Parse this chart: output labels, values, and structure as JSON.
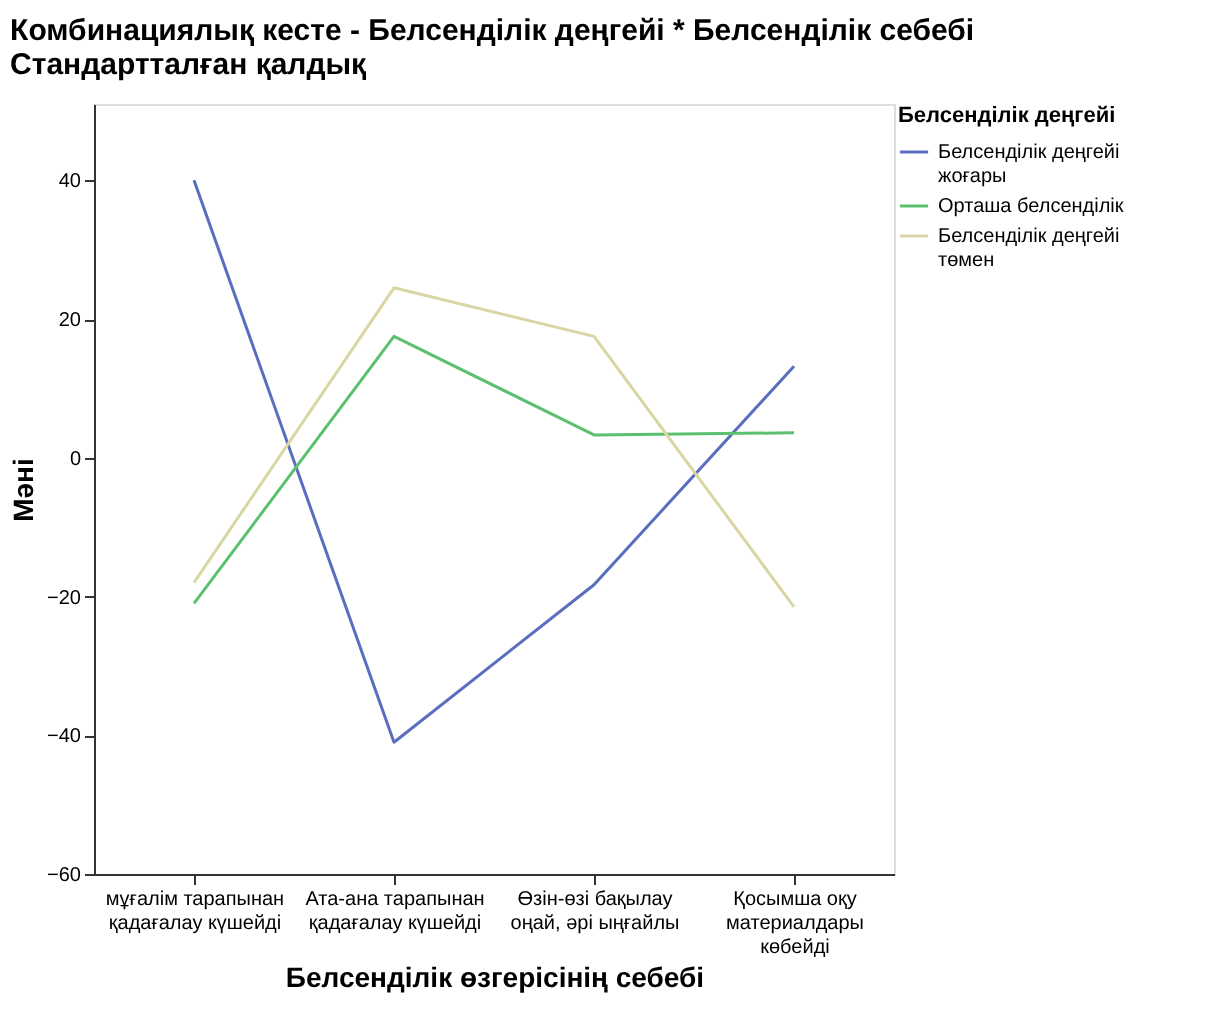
{
  "chart_data": {
    "type": "line",
    "title": [
      "Комбинациялық кесте -  Белсенділік деңгейі * Белсенділік себебі",
      "Стандартталған қалдық"
    ],
    "xlabel": "Белсенділік өзгерісінің себебі",
    "ylabel": "Мәні",
    "legend_title": "Белсенділік деңгейі",
    "categories": [
      "мұғалім тарапынан қадағалау күшейді",
      "Ата-ана тарапынан қадағалау күшейді",
      "Өзін-өзі бақылау оңай, әрі ыңғайлы",
      "Қосымша оқу материалдары көбейді"
    ],
    "series": [
      {
        "name": "Белсенділік деңгейі жоғары",
        "color": "#5a6ebf",
        "values": [
          40,
          -41,
          -18.3,
          13.2
        ]
      },
      {
        "name": "Орташа белсенділік",
        "color": "#5cc070",
        "values": [
          -21,
          17.5,
          3.3,
          3.6
        ]
      },
      {
        "name": "Белсенділік деңгейі төмен",
        "color": "#d8d6a4",
        "values": [
          -18,
          24.5,
          17.5,
          -21.5
        ]
      }
    ],
    "ylim": [
      -60,
      51
    ],
    "yticks": [
      -60,
      -40,
      -20,
      0,
      20,
      40
    ],
    "grid": false,
    "legend": "top right",
    "marker": "none",
    "line_style": "solid"
  }
}
